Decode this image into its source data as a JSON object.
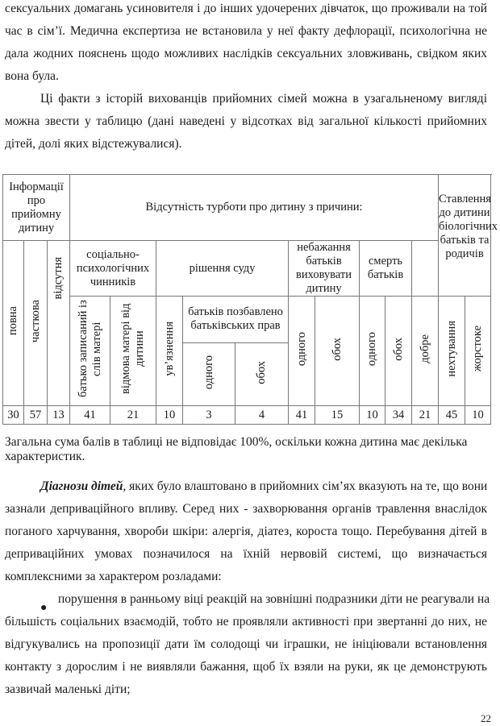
{
  "paragraph1": {
    "lines": [
      "сексуальних домагань усиновителя і до інших удочерених дівчаток, що проживали на той",
      "час в сім’ї. Медична експертиза не встановила у неї факту дефлорації, психологічна не",
      "дала жодних пояснень щодо можливих наслідків сексуальних зловживань, свідком яких",
      "вона була."
    ]
  },
  "paragraph2": {
    "lines": [
      "Ці факти з історій вихованців прийомних сімей можна в узагальненому вигляді",
      "можна звести у таблицю (дані наведені у відсотках від загальної кількості прийомних",
      "дітей, долі яких відстежувалися)."
    ]
  },
  "table": {
    "h_info": "Інформації про прийомну дитину",
    "h_absence": "Відсутність турботи про дитину з причини:",
    "h_attitude": "Ставлення до дитини біологічних батьків та родичів",
    "family_full": "повна",
    "family_partial": "часткова",
    "family_absent": "відсутня",
    "h_social": "соціально-психологічних чинників",
    "h_court": "рішення суду",
    "h_unwilling": "небажання батьків виховувати дитину",
    "h_death": "смерть батьків",
    "social_father": "батько записаний із слів матері",
    "social_mother": "відмова матері від дитини",
    "court_prison": "ув’язнення",
    "court_deprived": "батьків позбавлено батьківських прав",
    "one": "одного",
    "both": "обох",
    "att_good": "добре",
    "att_neglect": "нехтування",
    "att_cruel": "жорстоке",
    "values": [
      "30",
      "57",
      "13",
      "41",
      "21",
      "10",
      "3",
      "4",
      "41",
      "15",
      "10",
      "34",
      "21",
      "45",
      "10"
    ]
  },
  "note": {
    "lines": [
      "Загальна сума балів в таблиці не відповідає 100%, оскільки кожна дитина має декілька",
      "характеристик."
    ]
  },
  "paragraph3": {
    "bold_lead": "Діагнози дітей",
    "first_rest": ", яких було влаштовано в прийомних сім’ях вказують на те, що вони",
    "lines": [
      "зазнали депривацiйного впливу. Серед них - захворювання органів травлення внаслідок",
      "поганого харчування, хвороби шкіри: алергія, діатез, короста тощо. Перебування дітей в",
      "депривацiйних умовах позначилося на їхній нервовій системі, що визначається",
      "комплексними за характером розладами:"
    ]
  },
  "bullet1": {
    "lines": [
      "порушення в ранньому віці реакцій на зовнішні подразники діти не реагували на",
      "більшість соціальних взаємодій, тобто не проявляли активності при звертанні до них, не",
      "відгукувались на пропозиції дати їм солодощі чи іграшки, не ініціювали встановлення",
      "контакту з дорослим і не виявляли бажання, щоб їх взяли на руки, як це демонструють",
      "зазвичай маленькі діти;"
    ]
  },
  "page_number": "22"
}
